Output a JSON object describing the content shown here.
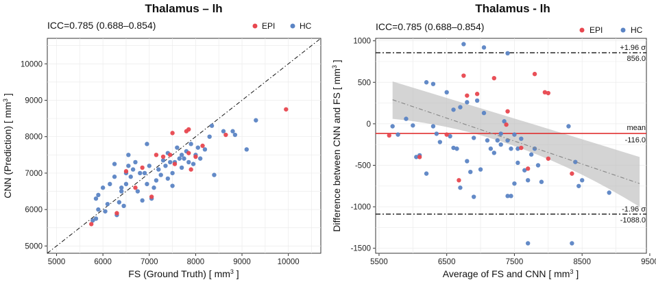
{
  "chart_data": [
    {
      "type": "scatter",
      "title": "Thalamus – lh",
      "icc": "ICC=0.785 (0.688–0.854)",
      "xlabel": "FS (Ground Truth)",
      "ylabel": "CNN (Prediction)",
      "unit_base": "mm",
      "unit_exp": "3",
      "xlim": [
        4800,
        10700
      ],
      "ylim": [
        4800,
        10700
      ],
      "xticks": [
        5000,
        6000,
        7000,
        8000,
        9000,
        10000
      ],
      "yticks": [
        5000,
        6000,
        7000,
        8000,
        9000,
        10000
      ],
      "identity_line": true,
      "legend": [
        "EPI",
        "HC"
      ],
      "colors": {
        "EPI": "#e8474f",
        "HC": "#5b84c4"
      },
      "series": [
        {
          "name": "EPI",
          "points": [
            [
              5750,
              5600
            ],
            [
              6300,
              5900
            ],
            [
              6500,
              7050
            ],
            [
              6700,
              6600
            ],
            [
              6850,
              7150
            ],
            [
              7050,
              6350
            ],
            [
              7150,
              7500
            ],
            [
              7300,
              7450
            ],
            [
              7450,
              7500
            ],
            [
              7500,
              8100
            ],
            [
              7550,
              7250
            ],
            [
              7800,
              8150
            ],
            [
              7850,
              8200
            ],
            [
              7850,
              7550
            ],
            [
              7900,
              7100
            ],
            [
              8000,
              7450
            ],
            [
              8150,
              7750
            ],
            [
              8650,
              8050
            ],
            [
              9950,
              8750
            ]
          ]
        },
        {
          "name": "HC",
          "points": [
            [
              5780,
              5700
            ],
            [
              5850,
              5750
            ],
            [
              5900,
              6000
            ],
            [
              5850,
              6300
            ],
            [
              5900,
              6400
            ],
            [
              6000,
              6600
            ],
            [
              6050,
              5950
            ],
            [
              6100,
              6150
            ],
            [
              6150,
              6700
            ],
            [
              6250,
              6900
            ],
            [
              6250,
              7250
            ],
            [
              6300,
              5850
            ],
            [
              6350,
              6200
            ],
            [
              6400,
              6500
            ],
            [
              6400,
              6600
            ],
            [
              6450,
              6100
            ],
            [
              6500,
              6700
            ],
            [
              6500,
              7000
            ],
            [
              6550,
              7200
            ],
            [
              6550,
              7500
            ],
            [
              6600,
              6900
            ],
            [
              6650,
              7100
            ],
            [
              6700,
              7300
            ],
            [
              6750,
              6500
            ],
            [
              6800,
              7000
            ],
            [
              6850,
              6250
            ],
            [
              6900,
              7000
            ],
            [
              6950,
              6700
            ],
            [
              6950,
              7800
            ],
            [
              7000,
              7200
            ],
            [
              7050,
              6300
            ],
            [
              7100,
              6600
            ],
            [
              7150,
              6800
            ],
            [
              7200,
              7100
            ],
            [
              7250,
              6950
            ],
            [
              7300,
              7350
            ],
            [
              7350,
              7200
            ],
            [
              7400,
              6850
            ],
            [
              7400,
              7550
            ],
            [
              7450,
              7300
            ],
            [
              7500,
              6650
            ],
            [
              7500,
              7000
            ],
            [
              7550,
              7300
            ],
            [
              7600,
              7700
            ],
            [
              7650,
              7400
            ],
            [
              7700,
              7150
            ],
            [
              7700,
              7500
            ],
            [
              7750,
              7400
            ],
            [
              7800,
              7600
            ],
            [
              7850,
              7300
            ],
            [
              7900,
              7800
            ],
            [
              7950,
              7250
            ],
            [
              8000,
              7500
            ],
            [
              8050,
              7700
            ],
            [
              8100,
              7400
            ],
            [
              8200,
              7650
            ],
            [
              8300,
              8000
            ],
            [
              8350,
              8300
            ],
            [
              8400,
              6950
            ],
            [
              8600,
              8150
            ],
            [
              8800,
              8150
            ],
            [
              8850,
              8050
            ],
            [
              9100,
              7650
            ],
            [
              9300,
              8450
            ]
          ]
        }
      ]
    },
    {
      "type": "scatter",
      "title": "Thalamus - lh",
      "icc": "ICC=0.785 (0.688–0.854)",
      "xlabel": "Average of FS and CNN",
      "ylabel": "Difference between CNN and FS",
      "unit_base": "mm",
      "unit_exp": "3",
      "xlim": [
        5450,
        9450
      ],
      "ylim": [
        -1560,
        1030
      ],
      "xticks": [
        5500,
        6500,
        7500,
        8500,
        9500
      ],
      "yticks": [
        -1500,
        -1000,
        -500,
        0,
        500,
        1000
      ],
      "legend": [
        "EPI",
        "HC"
      ],
      "colors": {
        "EPI": "#e8474f",
        "HC": "#5b84c4",
        "mean": "#e03030"
      },
      "mean_line": {
        "label": "mean",
        "value": -116.0,
        "value_text": "-116.0"
      },
      "upper_loa": {
        "label": "+1.96 σ",
        "value": 856.0,
        "value_text": "856.0"
      },
      "lower_loa": {
        "label": "-1.96 σ",
        "value": -1088.0,
        "value_text": "-1088.0"
      },
      "regression": {
        "x0": 5700,
        "y0": 290,
        "x1": 9350,
        "y1": -720,
        "band_start": [
          60,
          510
        ],
        "band_mid": [
          -80,
          60
        ],
        "band_end": [
          -1000,
          -400
        ]
      },
      "series": [
        {
          "name": "EPI",
          "points": [
            [
              5650,
              -140
            ],
            [
              6100,
              -400
            ],
            [
              6500,
              -130
            ],
            [
              6680,
              -680
            ],
            [
              6750,
              580
            ],
            [
              6800,
              340
            ],
            [
              6950,
              360
            ],
            [
              7200,
              550
            ],
            [
              7380,
              -10
            ],
            [
              7400,
              150
            ],
            [
              7600,
              -290
            ],
            [
              7700,
              -540
            ],
            [
              7800,
              600
            ],
            [
              7950,
              380
            ],
            [
              8000,
              370
            ],
            [
              8000,
              -420
            ],
            [
              8350,
              -600
            ]
          ]
        },
        {
          "name": "HC",
          "points": [
            [
              5700,
              -30
            ],
            [
              5780,
              -130
            ],
            [
              5900,
              60
            ],
            [
              6000,
              -20
            ],
            [
              6050,
              -400
            ],
            [
              6100,
              -380
            ],
            [
              6200,
              500
            ],
            [
              6200,
              -600
            ],
            [
              6300,
              480
            ],
            [
              6300,
              -30
            ],
            [
              6350,
              -120
            ],
            [
              6400,
              -220
            ],
            [
              6500,
              380
            ],
            [
              6550,
              -150
            ],
            [
              6600,
              170
            ],
            [
              6600,
              -290
            ],
            [
              6650,
              -300
            ],
            [
              6700,
              -770
            ],
            [
              6700,
              200
            ],
            [
              6750,
              960
            ],
            [
              6800,
              260
            ],
            [
              6800,
              -450
            ],
            [
              6850,
              -580
            ],
            [
              6900,
              -880
            ],
            [
              6900,
              -170
            ],
            [
              6950,
              280
            ],
            [
              7000,
              -550
            ],
            [
              7050,
              920
            ],
            [
              7050,
              130
            ],
            [
              7100,
              -200
            ],
            [
              7150,
              -300
            ],
            [
              7200,
              -350
            ],
            [
              7250,
              -200
            ],
            [
              7300,
              -120
            ],
            [
              7300,
              -250
            ],
            [
              7350,
              30
            ],
            [
              7400,
              -870
            ],
            [
              7400,
              850
            ],
            [
              7400,
              -200
            ],
            [
              7450,
              -870
            ],
            [
              7450,
              -300
            ],
            [
              7500,
              -130
            ],
            [
              7500,
              -720
            ],
            [
              7550,
              -300
            ],
            [
              7550,
              -470
            ],
            [
              7600,
              -180
            ],
            [
              7650,
              -560
            ],
            [
              7700,
              -1440
            ],
            [
              7700,
              -680
            ],
            [
              7750,
              -370
            ],
            [
              7800,
              -300
            ],
            [
              7850,
              -500
            ],
            [
              7900,
              -700
            ],
            [
              8300,
              -30
            ],
            [
              8350,
              -1440
            ],
            [
              8400,
              -460
            ],
            [
              8450,
              -750
            ],
            [
              8500,
              -680
            ],
            [
              8900,
              -830
            ]
          ]
        }
      ]
    }
  ]
}
